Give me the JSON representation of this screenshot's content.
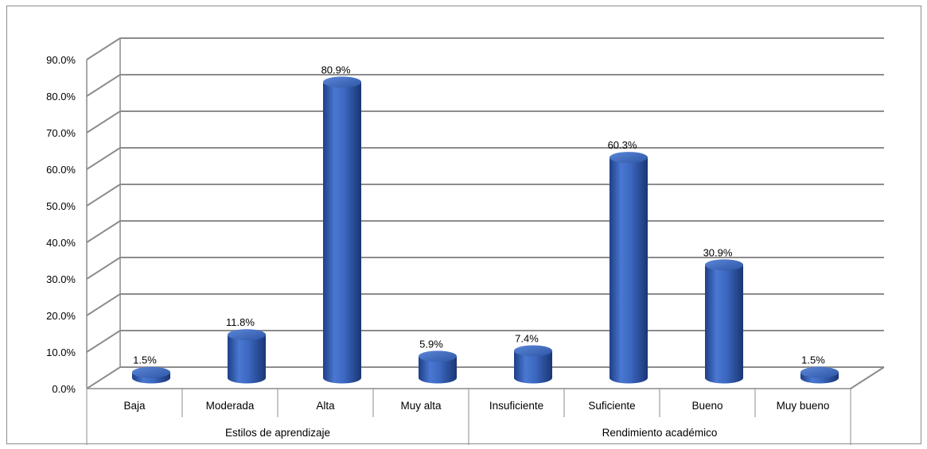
{
  "chart_data": {
    "type": "bar",
    "style": "3d-cylinder",
    "categories": [
      "Baja",
      "Moderada",
      "Alta",
      "Muy alta",
      "Insuficiente",
      "Suficiente",
      "Bueno",
      "Muy bueno"
    ],
    "groups": [
      {
        "label": "Estilos de aprendizaje",
        "categories": [
          "Baja",
          "Moderada",
          "Alta",
          "Muy alta"
        ]
      },
      {
        "label": "Rendimiento académico",
        "categories": [
          "Insuficiente",
          "Suficiente",
          "Bueno",
          "Muy bueno"
        ]
      }
    ],
    "values": [
      1.5,
      11.8,
      80.9,
      5.9,
      7.4,
      60.3,
      30.9,
      1.5
    ],
    "data_labels": [
      "1.5%",
      "11.8%",
      "80.9%",
      "5.9%",
      "7.4%",
      "60.3%",
      "30.9%",
      "1.5%"
    ],
    "y_ticks": [
      "0.0%",
      "10.0%",
      "20.0%",
      "30.0%",
      "40.0%",
      "50.0%",
      "60.0%",
      "70.0%",
      "80.0%",
      "90.0%"
    ],
    "ylim": [
      0,
      100
    ],
    "grid": true,
    "legend": "none",
    "bar_color": "#3f6cc4"
  }
}
